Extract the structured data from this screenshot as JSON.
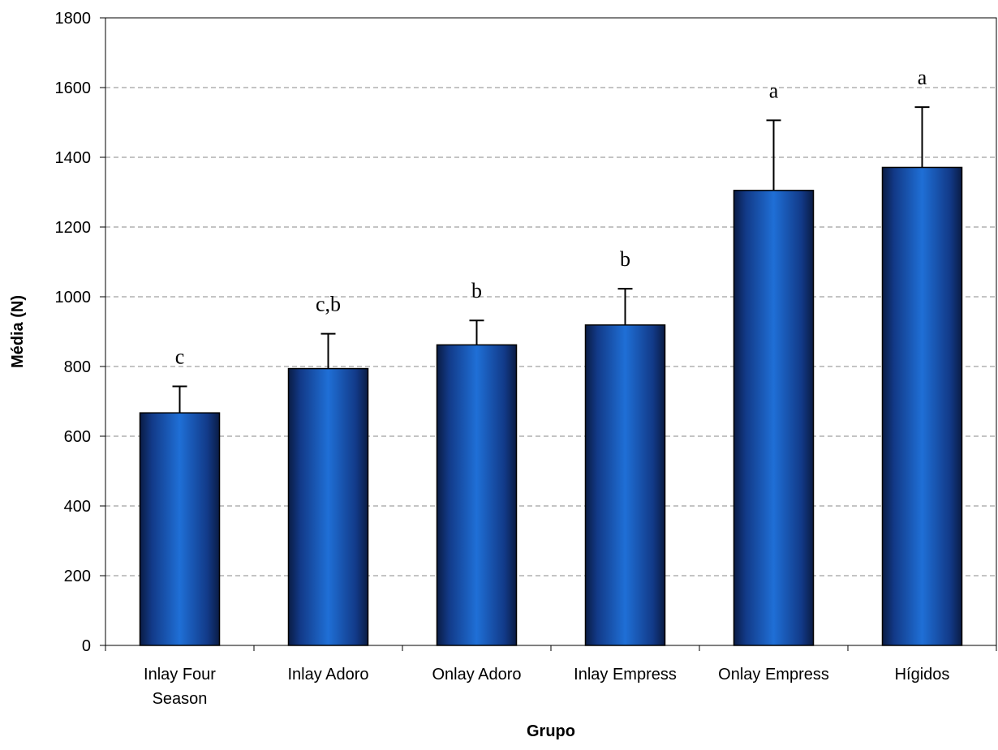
{
  "chart_data": {
    "type": "bar",
    "title": "",
    "xlabel": "Grupo",
    "ylabel": "Média (N)",
    "ylim": [
      0,
      1800
    ],
    "yticks": [
      0,
      200,
      400,
      600,
      800,
      1000,
      1200,
      1400,
      1600,
      1800
    ],
    "grid": true,
    "categories": [
      [
        "Inlay Four",
        "Season"
      ],
      [
        "Inlay Adoro"
      ],
      [
        "Onlay Adoro"
      ],
      [
        "Inlay Empress"
      ],
      [
        "Onlay Empress"
      ],
      [
        "Hígidos"
      ]
    ],
    "values": [
      667,
      794,
      862,
      919,
      1305,
      1371
    ],
    "errors": [
      76,
      100,
      70,
      104,
      201,
      173
    ],
    "significance_labels": [
      "c",
      "c,b",
      "b",
      "b",
      "a",
      "a"
    ],
    "bar_color": "#1a5fc0"
  }
}
